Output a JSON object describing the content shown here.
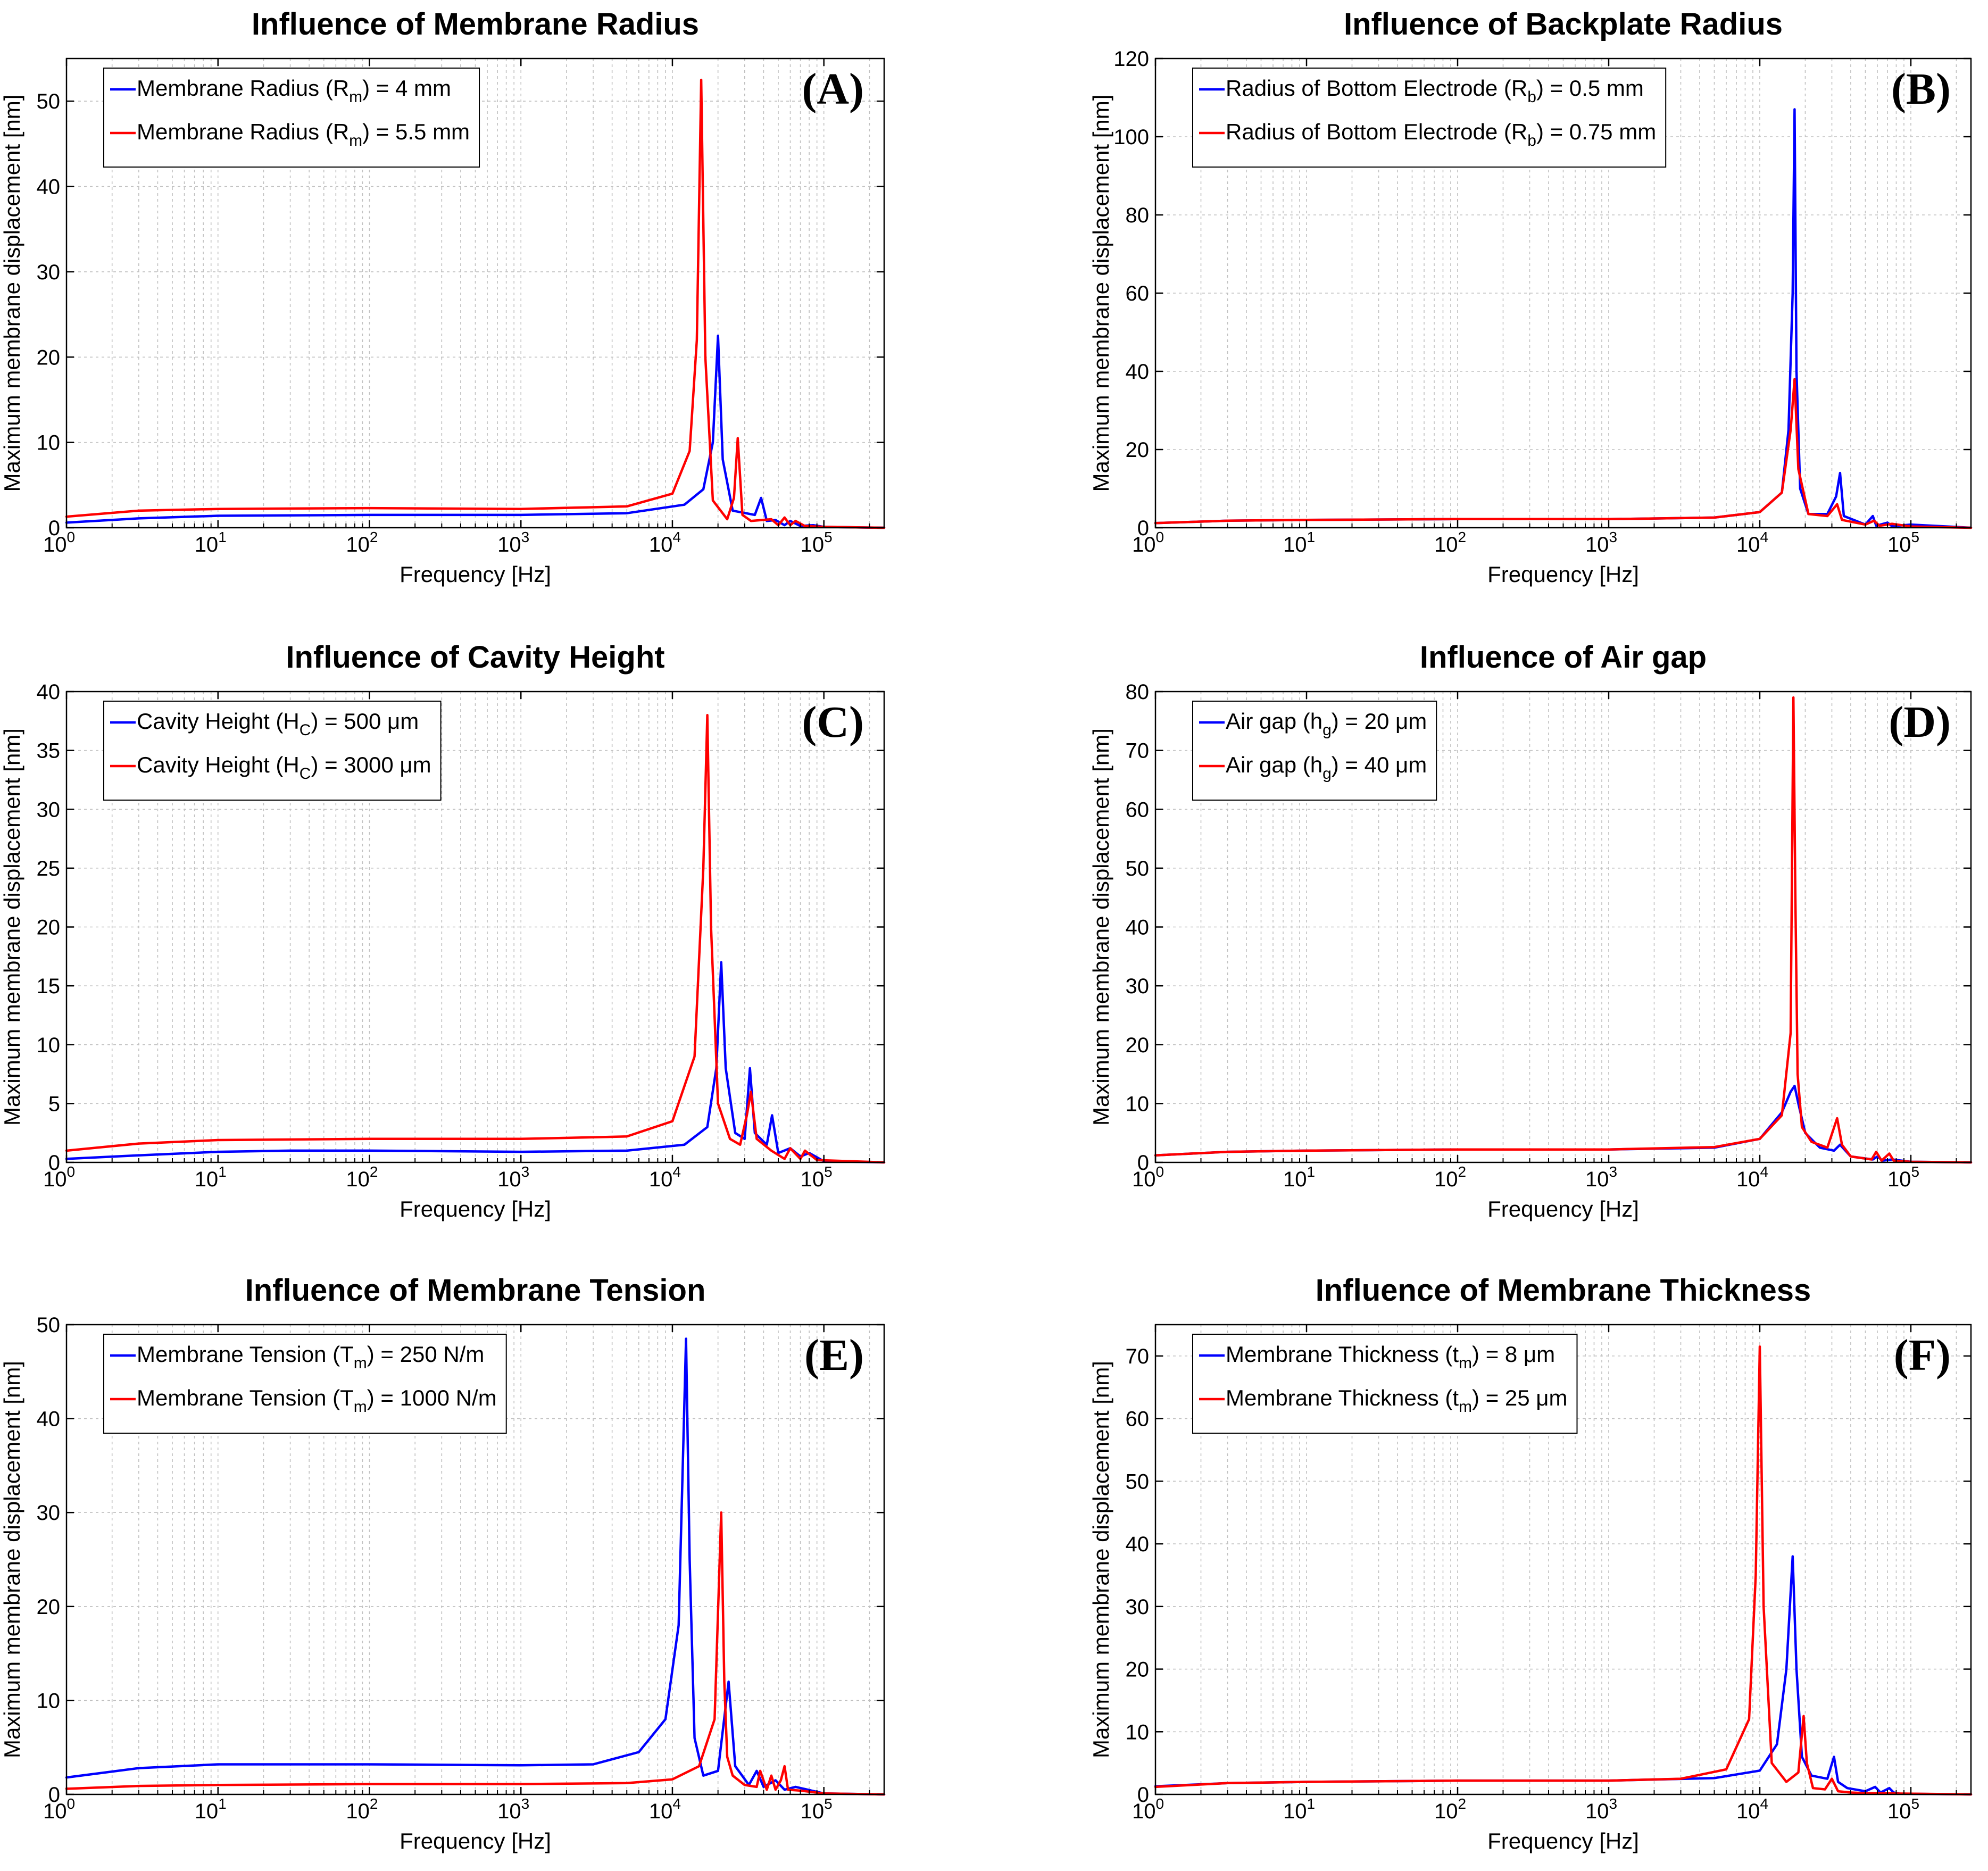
{
  "figure": {
    "colors": {
      "blue": "#0000ff",
      "red": "#ff0000",
      "grid": "#c0c0c0"
    }
  },
  "chart_data": [
    {
      "type": "line",
      "panel_label": "(A)",
      "title": "Influence of Membrane Radius",
      "xlabel": "Frequency [Hz]",
      "ylabel": "Maximum membrane displacement [nm]",
      "xscale": "log",
      "xlim": [
        1,
        250000
      ],
      "ylim": [
        0,
        55
      ],
      "yticks": [
        0,
        10,
        20,
        30,
        40,
        50
      ],
      "xtick_exponents": [
        "0",
        "1",
        "2",
        "3",
        "4",
        "5"
      ],
      "legend_position": "top-left",
      "series": [
        {
          "name": "Membrane Radius (Rm) = 4 mm",
          "legend_pre": "Membrane Radius (R",
          "legend_sub": "m",
          "legend_post": ") = 4 mm",
          "color": "#0000ff",
          "x": [
            1,
            3,
            10,
            100,
            1000,
            5000,
            12000,
            16000,
            18500,
            20000,
            21500,
            25000,
            35000,
            38500,
            42000,
            48000,
            55000,
            60000,
            70000,
            85000,
            100000,
            250000
          ],
          "y": [
            0.6,
            1.1,
            1.4,
            1.5,
            1.5,
            1.7,
            2.7,
            4.5,
            10,
            22.5,
            8,
            2.0,
            1.5,
            3.5,
            0.8,
            0.9,
            0.3,
            0.8,
            0.2,
            0.3,
            0.1,
            0.0
          ]
        },
        {
          "name": "Membrane Radius (Rm) = 5.5 mm",
          "legend_pre": "Membrane Radius (R",
          "legend_sub": "m",
          "legend_post": ") = 5.5 mm",
          "color": "#ff0000",
          "x": [
            1,
            3,
            10,
            100,
            1000,
            5000,
            10000,
            13000,
            14500,
            15500,
            16500,
            18500,
            23000,
            25500,
            27000,
            29000,
            33000,
            45000,
            50000,
            55000,
            60000,
            65000,
            75000,
            100000,
            250000
          ],
          "y": [
            1.3,
            2.0,
            2.2,
            2.3,
            2.2,
            2.5,
            4.0,
            9,
            22,
            52.5,
            20,
            3.2,
            1.0,
            3.5,
            10.5,
            1.5,
            0.8,
            1.0,
            0.3,
            1.2,
            0.3,
            0.8,
            0.2,
            0.1,
            0.0
          ]
        }
      ]
    },
    {
      "type": "line",
      "panel_label": "(B)",
      "title": "Influence of Backplate Radius",
      "xlabel": "Frequency [Hz]",
      "ylabel": "Maximum membrane displacement [nm]",
      "xscale": "log",
      "xlim": [
        1,
        250000
      ],
      "ylim": [
        0,
        120
      ],
      "yticks": [
        0,
        20,
        40,
        60,
        80,
        100,
        120
      ],
      "xtick_exponents": [
        "0",
        "1",
        "2",
        "3",
        "4",
        "5"
      ],
      "legend_position": "top-left",
      "series": [
        {
          "name": "Radius of Bottom Electrode (Rb) = 0.5 mm",
          "legend_pre": "Radius of Bottom Electrode (R",
          "legend_sub": "b",
          "legend_post": ") = 0.5 mm",
          "color": "#0000ff",
          "x": [
            1,
            3,
            10,
            100,
            1000,
            5000,
            10000,
            14000,
            15500,
            16500,
            17000,
            17500,
            18500,
            21000,
            28000,
            32000,
            34000,
            36000,
            50000,
            56000,
            59000,
            70000,
            75000,
            100000,
            250000
          ],
          "y": [
            1.2,
            1.8,
            2.0,
            2.2,
            2.2,
            2.6,
            4.0,
            9,
            25,
            60,
            107,
            40,
            10,
            3.5,
            3.5,
            8,
            14,
            3.0,
            0.8,
            3.0,
            0.5,
            1.3,
            0.4,
            0.8,
            0.0
          ]
        },
        {
          "name": "Radius of Bottom Electrode (Rb) = 0.75 mm",
          "legend_pre": "Radius of Bottom Electrode (R",
          "legend_sub": "b",
          "legend_post": ") = 0.75 mm",
          "color": "#ff0000",
          "x": [
            1,
            3,
            10,
            100,
            1000,
            5000,
            10000,
            14000,
            16000,
            17000,
            18000,
            21000,
            28000,
            32500,
            35000,
            50000,
            57000,
            62000,
            75000,
            100000,
            250000
          ],
          "y": [
            1.2,
            1.8,
            2.0,
            2.2,
            2.2,
            2.6,
            4.0,
            9,
            25,
            38,
            15,
            3.5,
            3.0,
            6.0,
            2.0,
            0.8,
            1.8,
            0.5,
            1.0,
            0.3,
            0.0
          ]
        }
      ]
    },
    {
      "type": "line",
      "panel_label": "(C)",
      "title": "Influence of Cavity Height",
      "xlabel": "Frequency [Hz]",
      "ylabel": "Maximum membrane displacement [nm]",
      "xscale": "log",
      "xlim": [
        1,
        250000
      ],
      "ylim": [
        0,
        40
      ],
      "yticks": [
        0,
        5,
        10,
        15,
        20,
        25,
        30,
        35,
        40
      ],
      "xtick_exponents": [
        "0",
        "1",
        "2",
        "3",
        "4",
        "5"
      ],
      "legend_position": "top-left",
      "series": [
        {
          "name": "Cavity Height (HC) = 500 um",
          "legend_pre": "Cavity Height (H",
          "legend_sub": "C",
          "legend_post": ") = 500 μm",
          "color": "#0000ff",
          "x": [
            1,
            3,
            10,
            30,
            100,
            1000,
            5000,
            12000,
            17000,
            19500,
            21000,
            22500,
            26000,
            30000,
            32500,
            35000,
            42000,
            45500,
            50000,
            60000,
            70000,
            80000,
            100000,
            250000
          ],
          "y": [
            0.3,
            0.6,
            0.9,
            1.0,
            1.0,
            0.9,
            1.0,
            1.5,
            3.0,
            8,
            17,
            8,
            2.5,
            2.0,
            8,
            2.5,
            1.5,
            4.0,
            0.8,
            1.2,
            0.5,
            0.8,
            0.1,
            0.0
          ]
        },
        {
          "name": "Cavity Height (HC) = 3000 um",
          "legend_pre": "Cavity Height (H",
          "legend_sub": "C",
          "legend_post": ") = 3000 μm",
          "color": "#ff0000",
          "x": [
            1,
            3,
            10,
            100,
            1000,
            5000,
            10000,
            14000,
            16000,
            17000,
            18000,
            20000,
            24000,
            28000,
            31000,
            33000,
            36000,
            45000,
            55000,
            60000,
            70000,
            75000,
            90000,
            250000
          ],
          "y": [
            1.0,
            1.6,
            1.9,
            2.0,
            2.0,
            2.2,
            3.5,
            9,
            25,
            38,
            20,
            5,
            2.0,
            1.5,
            4.0,
            6.0,
            2.0,
            1.0,
            0.3,
            1.2,
            0.3,
            1.0,
            0.2,
            0.0
          ]
        }
      ]
    },
    {
      "type": "line",
      "panel_label": "(D)",
      "title": "Influence of Air gap",
      "xlabel": "Frequency [Hz]",
      "ylabel": "Maximum membrane displacement [nm]",
      "xscale": "log",
      "xlim": [
        1,
        250000
      ],
      "ylim": [
        0,
        80
      ],
      "yticks": [
        0,
        10,
        20,
        30,
        40,
        50,
        60,
        70,
        80
      ],
      "xtick_exponents": [
        "0",
        "1",
        "2",
        "3",
        "4",
        "5"
      ],
      "legend_position": "top-left",
      "series": [
        {
          "name": "Air gap (hg) = 20 um",
          "legend_pre": "Air gap (h",
          "legend_sub": "g",
          "legend_post": ") = 20 μm",
          "color": "#0000ff",
          "x": [
            1,
            3,
            10,
            100,
            1000,
            5000,
            10000,
            14000,
            16000,
            17000,
            18000,
            20000,
            25000,
            31000,
            34000,
            40000,
            56000,
            60000,
            65000,
            75000,
            100000,
            250000
          ],
          "y": [
            1.2,
            1.8,
            2.0,
            2.2,
            2.2,
            2.5,
            4.0,
            8.5,
            12,
            13,
            10,
            5,
            2.5,
            2.0,
            3.0,
            1.0,
            0.5,
            1.0,
            0.3,
            0.5,
            0.1,
            0.0
          ]
        },
        {
          "name": "Air gap (hg) = 40 um",
          "legend_pre": "Air gap (h",
          "legend_sub": "g",
          "legend_post": ") = 40 μm",
          "color": "#ff0000",
          "x": [
            1,
            3,
            10,
            100,
            1000,
            5000,
            10000,
            14000,
            16000,
            16700,
            17200,
            17800,
            19000,
            22000,
            28000,
            32500,
            35000,
            40000,
            55000,
            59000,
            64000,
            72000,
            77000,
            100000,
            250000
          ],
          "y": [
            1.2,
            1.8,
            2.0,
            2.2,
            2.2,
            2.6,
            4.0,
            8,
            22,
            79,
            45,
            15,
            6,
            3.5,
            2.5,
            7.5,
            3.0,
            1.0,
            0.5,
            1.8,
            0.3,
            1.5,
            0.3,
            0.1,
            0.0
          ]
        }
      ]
    },
    {
      "type": "line",
      "panel_label": "(E)",
      "title": "Influence of Membrane Tension",
      "xlabel": "Frequency [Hz]",
      "ylabel": "Maximum membrane displacement [nm]",
      "xscale": "log",
      "xlim": [
        1,
        250000
      ],
      "ylim": [
        0,
        50
      ],
      "yticks": [
        0,
        10,
        20,
        30,
        40,
        50
      ],
      "xtick_exponents": [
        "0",
        "1",
        "2",
        "3",
        "4",
        "5"
      ],
      "legend_position": "top-left",
      "series": [
        {
          "name": "Membrane Tension (Tm) = 250 N/m",
          "legend_pre": "Membrane Tension (T",
          "legend_sub": "m",
          "legend_post": ") = 250 N/m",
          "color": "#0000ff",
          "x": [
            1,
            3,
            10,
            100,
            1000,
            3000,
            6000,
            9000,
            11000,
            12300,
            13000,
            14000,
            16000,
            20000,
            23500,
            26000,
            32000,
            36000,
            40000,
            48000,
            55000,
            65000,
            100000,
            250000
          ],
          "y": [
            1.8,
            2.8,
            3.2,
            3.2,
            3.1,
            3.2,
            4.5,
            8,
            18,
            48.5,
            25,
            6,
            2.0,
            2.5,
            12,
            3.0,
            1.0,
            2.5,
            0.8,
            1.5,
            0.5,
            0.8,
            0.1,
            0.0
          ]
        },
        {
          "name": "Membrane Tension (Tm) = 1000 N/m",
          "legend_pre": "Membrane Tension (T",
          "legend_sub": "m",
          "legend_post": ") = 1000 N/m",
          "color": "#ff0000",
          "x": [
            1,
            3,
            10,
            100,
            1000,
            5000,
            10000,
            15000,
            19000,
            21000,
            22000,
            23000,
            25000,
            30000,
            36000,
            38000,
            42000,
            45000,
            48000,
            52000,
            55000,
            58000,
            70000,
            100000,
            250000
          ],
          "y": [
            0.6,
            0.9,
            1.0,
            1.1,
            1.1,
            1.2,
            1.6,
            3.0,
            8,
            30,
            12,
            4,
            2.0,
            1.0,
            0.8,
            2.5,
            0.5,
            2.0,
            0.5,
            1.5,
            3.0,
            0.5,
            0.4,
            0.1,
            0.0
          ]
        }
      ]
    },
    {
      "type": "line",
      "panel_label": "(F)",
      "title": "Influence of Membrane Thickness",
      "xlabel": "Frequency [Hz]",
      "ylabel": "Maximum membrane displacement [nm]",
      "xscale": "log",
      "xlim": [
        1,
        250000
      ],
      "ylim": [
        0,
        75
      ],
      "yticks": [
        0,
        10,
        20,
        30,
        40,
        50,
        60,
        70
      ],
      "xtick_exponents": [
        "0",
        "1",
        "2",
        "3",
        "4",
        "5"
      ],
      "legend_position": "top-left",
      "series": [
        {
          "name": "Membrane Thickness (tm) = 8 um",
          "legend_pre": "Membrane Thickness (t",
          "legend_sub": "m",
          "legend_post": ") = 8 μm",
          "color": "#0000ff",
          "x": [
            1,
            3,
            10,
            100,
            1000,
            5000,
            10000,
            13000,
            15000,
            16500,
            17500,
            19000,
            22000,
            28000,
            31000,
            33000,
            38000,
            50000,
            58000,
            63000,
            72000,
            77000,
            85000,
            250000
          ],
          "y": [
            1.3,
            1.8,
            2.0,
            2.2,
            2.2,
            2.6,
            3.8,
            8,
            20,
            38,
            20,
            6,
            3.0,
            2.5,
            6.0,
            2.0,
            1.0,
            0.5,
            1.2,
            0.3,
            1.0,
            0.3,
            0.1,
            0.0
          ]
        },
        {
          "name": "Membrane Thickness (tm) = 25 um",
          "legend_pre": "Membrane Thickness (t",
          "legend_sub": "m",
          "legend_post": ") = 25 μm",
          "color": "#ff0000",
          "x": [
            1,
            3,
            10,
            100,
            1000,
            3000,
            6000,
            8500,
            9400,
            10000,
            10600,
            12000,
            15000,
            18000,
            19500,
            20500,
            22500,
            27000,
            30000,
            33000,
            40000,
            50000,
            250000
          ],
          "y": [
            1.2,
            1.8,
            2.0,
            2.2,
            2.2,
            2.5,
            4.0,
            12,
            35,
            71.5,
            30,
            5,
            2.0,
            3.5,
            12.5,
            5,
            1.0,
            0.8,
            2.5,
            0.5,
            0.3,
            0.2,
            0.0
          ]
        }
      ]
    }
  ]
}
